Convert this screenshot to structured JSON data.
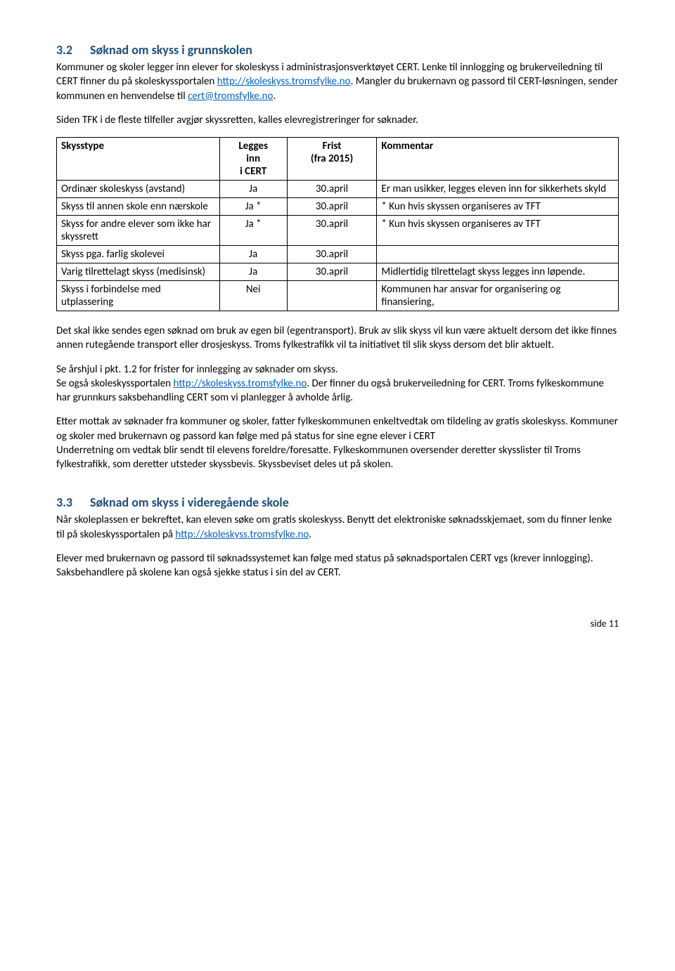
{
  "section32": {
    "num": "3.2",
    "title": "Søknad om skyss i grunnskolen",
    "p1_part1": "Kommuner og skoler legger inn elever for skoleskyss i administrasjonsverktøyet CERT. Lenke til innlogging og brukerveiledning til CERT finner du på skoleskyssportalen ",
    "link1": "http://skoleskyss.tromsfylke.no",
    "p1_part2": ". Mangler du brukernavn og passord til CERT-løsningen, sender kommunen en henvendelse til ",
    "link2": "cert@tromsfylke.no",
    "p1_part3": ".",
    "p2": "Siden TFK i de fleste tilfeller avgjør skyssretten, kalles elevregistreringer for søknader."
  },
  "table": {
    "headers": {
      "type": "Skysstype",
      "legges_l1": "Legges",
      "legges_l2": "inn",
      "legges_l3": "i CERT",
      "frist_l1": "Frist",
      "frist_l2": "(fra 2015)",
      "kommentar": "Kommentar"
    },
    "rows": [
      {
        "type": "Ordinær skoleskyss (avstand)",
        "legges": "Ja",
        "frist": "30.april",
        "kommentar": "Er man usikker, legges eleven inn for sikkerhets skyld"
      },
      {
        "type": "Skyss til annen skole enn nærskole",
        "legges": "Ja *",
        "frist": "30.april",
        "kommentar": "* Kun hvis skyssen organiseres av TFT"
      },
      {
        "type": "Skyss for andre elever som ikke har skyssrett",
        "legges": "Ja *",
        "frist": "30.april",
        "kommentar": "* Kun hvis skyssen organiseres av TFT"
      },
      {
        "type": "Skyss pga. farlig skolevei",
        "legges": "Ja",
        "frist": "30.april",
        "kommentar": ""
      },
      {
        "type": "Varig tilrettelagt skyss (medisinsk)",
        "legges": "Ja",
        "frist": "30.april",
        "kommentar": "Midlertidig tilrettelagt skyss legges inn løpende."
      },
      {
        "type": "Skyss i forbindelse med utplassering",
        "legges": "Nei",
        "frist": "",
        "kommentar": "Kommunen har ansvar for organisering og finansiering,"
      }
    ]
  },
  "after_table": {
    "p1": "Det skal ikke sendes egen søknad om bruk av egen bil (egentransport). Bruk av slik skyss vil kun være aktuelt dersom det ikke finnes annen rutegående transport eller drosjeskyss. Troms fylkestrafikk vil ta initiativet til slik skyss dersom det blir aktuelt.",
    "p2_l1": "Se årshjul i pkt. 1.2 for frister for innlegging av søknader om skyss.",
    "p2_l2a": "Se også skoleskyssportalen ",
    "p2_link": "http://skoleskyss.tromsfylke.no",
    "p2_l2b": ". Der finner du også brukerveiledning for CERT.  Troms fylkeskommune har grunnkurs saksbehandling CERT som vi planlegger å avholde årlig.",
    "p3": "Etter mottak av søknader fra kommuner og skoler, fatter fylkeskommunen enkeltvedtak om tildeling av gratis skoleskyss. Kommuner og skoler med brukernavn og passord kan følge med på status for sine egne elever i CERT",
    "p3b": "Underretning om vedtak blir sendt til elevens foreldre/foresatte. Fylkeskommunen oversender deretter skysslister til Troms fylkestrafikk, som deretter utsteder skyssbevis. Skyssbeviset deles ut på skolen."
  },
  "section33": {
    "num": "3.3",
    "title": "Søknad om skyss i videregående skole",
    "p1_a": "Når skoleplassen er bekreftet, kan eleven søke om gratis skoleskyss.  Benytt det elektroniske søknadsskjemaet, som du finner lenke til på skoleskyssportalen på ",
    "link": "http://skoleskyss.tromsfylke.no",
    "p1_b": ".",
    "p2": "Elever med brukernavn og passord til søknadssystemet kan følge med status på søknadsportalen CERT vgs (krever innlogging). Saksbehandlere på skolene kan også sjekke status i sin del av CERT."
  },
  "footer": "side 11"
}
